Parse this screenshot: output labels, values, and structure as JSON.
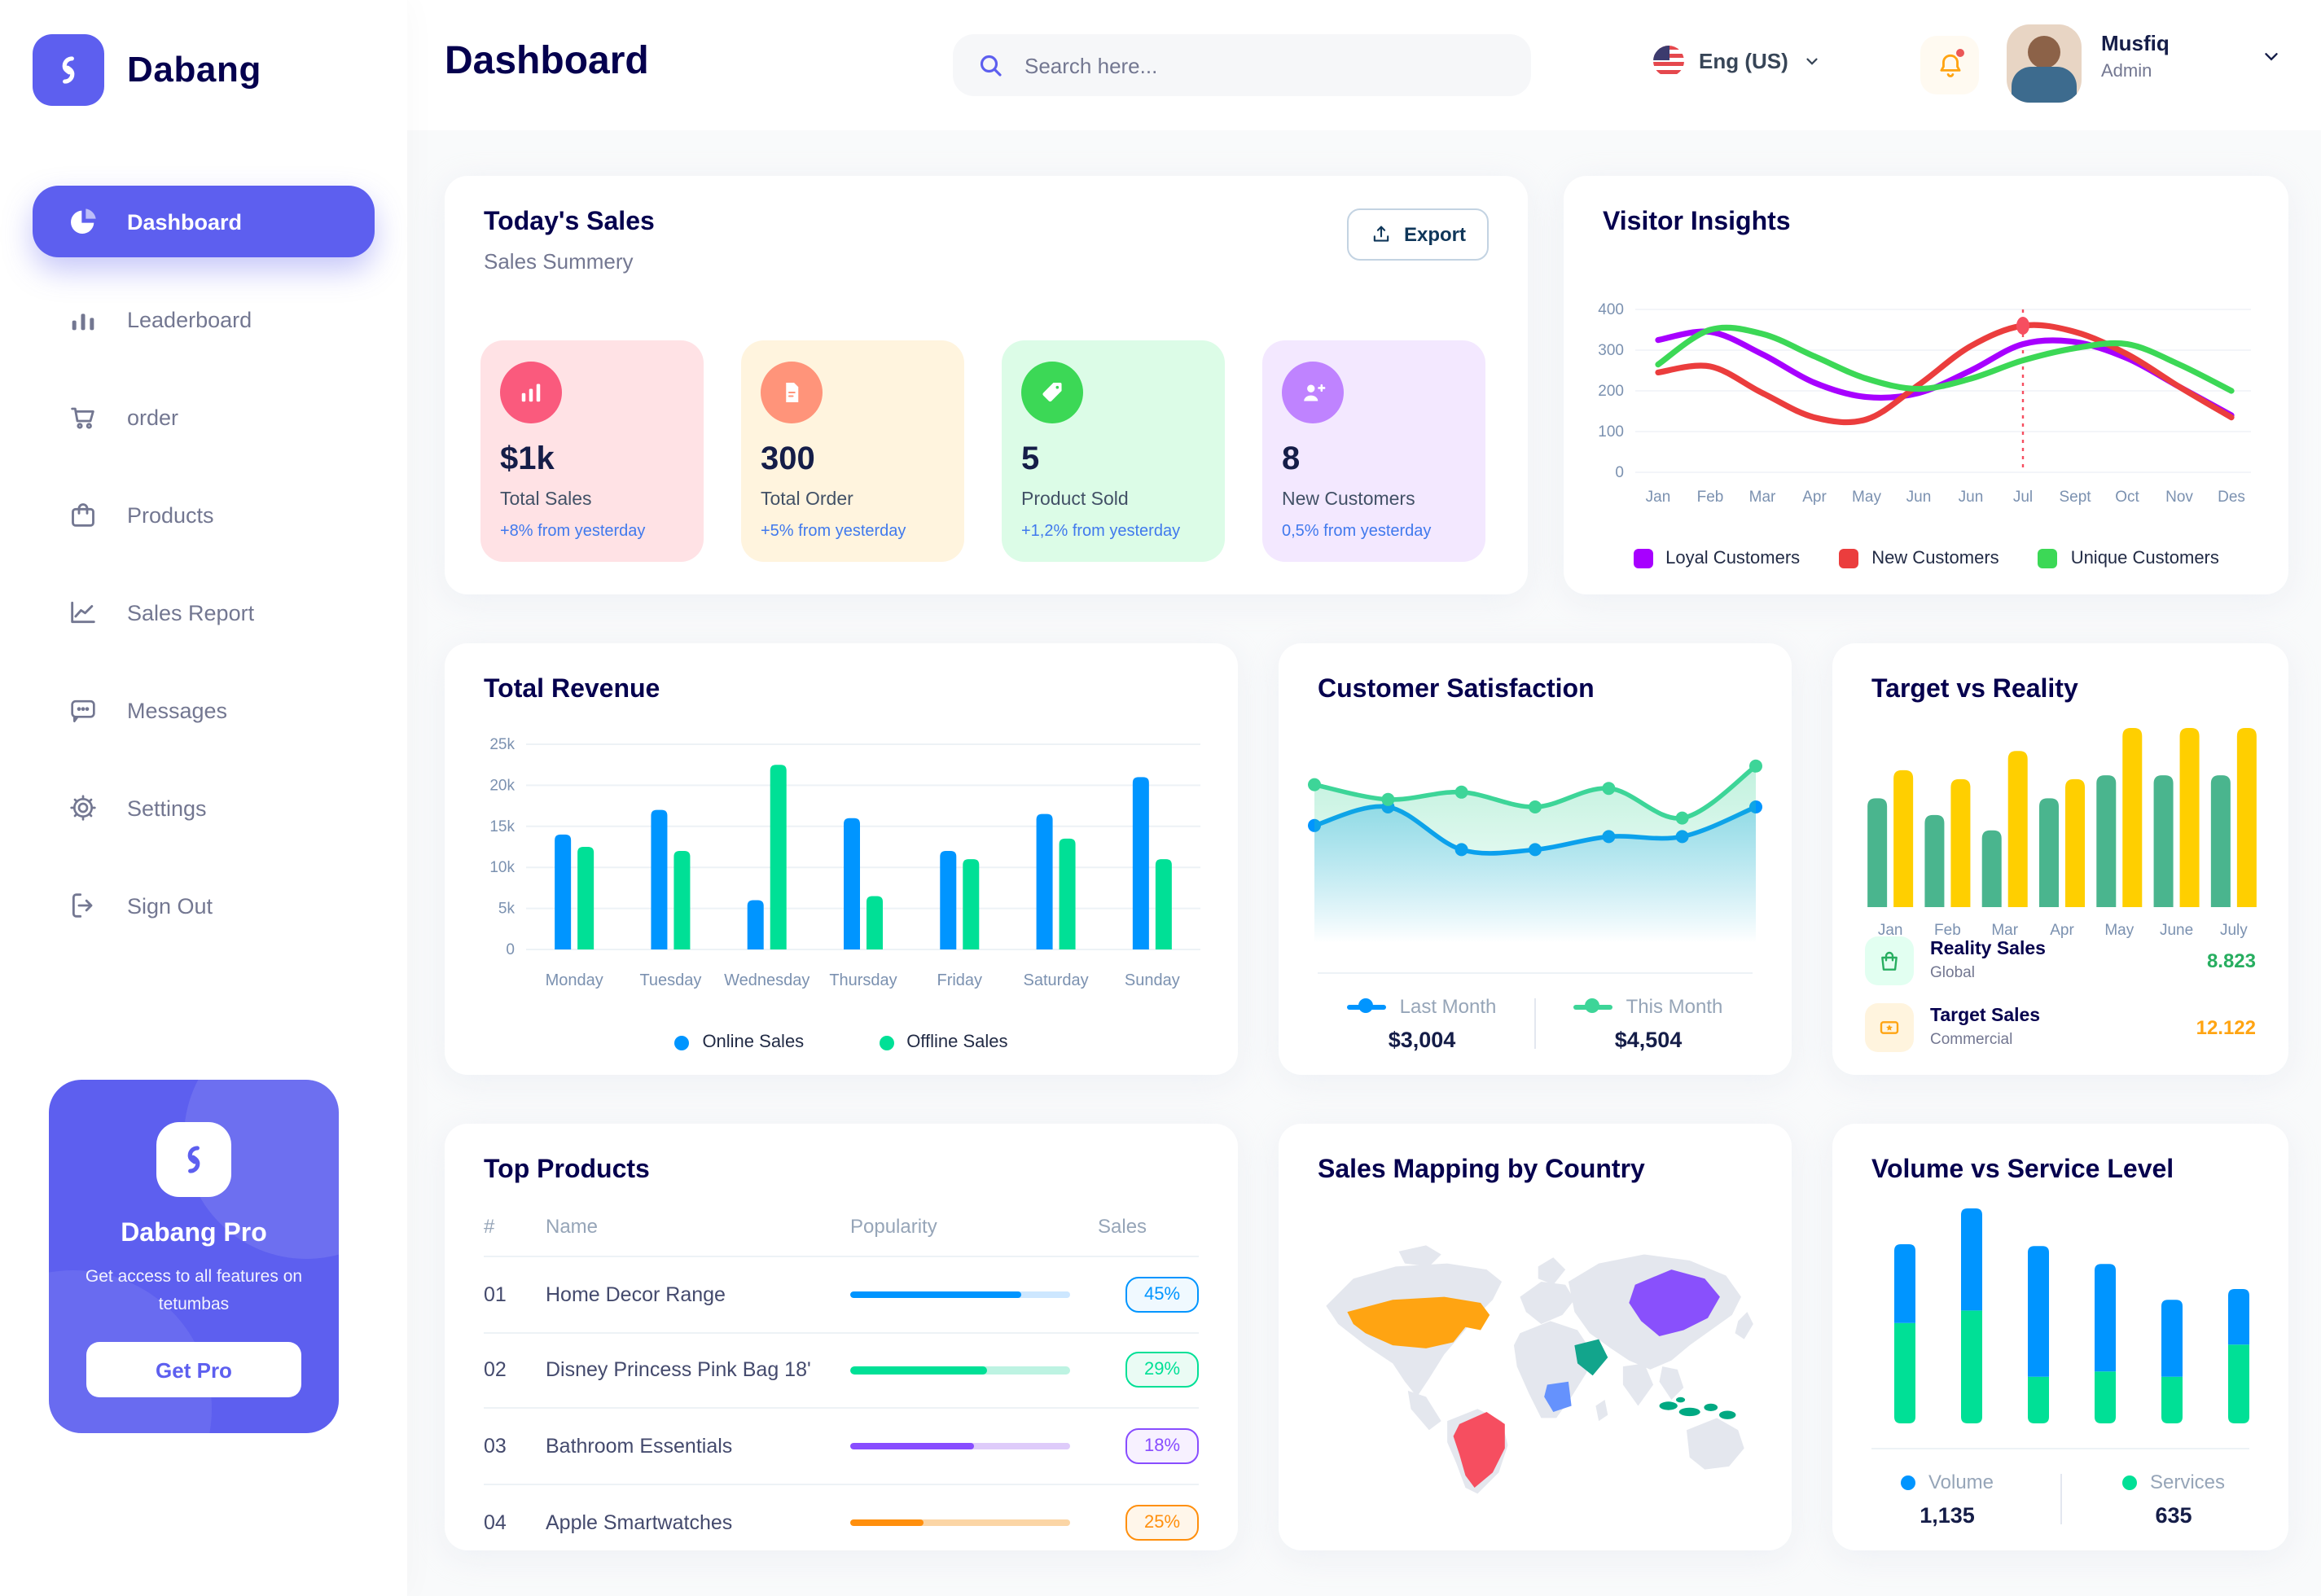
{
  "brand": {
    "name": "Dabang"
  },
  "sidebar": {
    "items": [
      {
        "label": "Dashboard",
        "icon": "pie-chart-icon",
        "active": true
      },
      {
        "label": "Leaderboard",
        "icon": "bar-chart-icon",
        "active": false
      },
      {
        "label": "order",
        "icon": "cart-icon",
        "active": false
      },
      {
        "label": "Products",
        "icon": "bag-icon",
        "active": false
      },
      {
        "label": "Sales Report",
        "icon": "line-chart-icon",
        "active": false
      },
      {
        "label": "Messages",
        "icon": "message-icon",
        "active": false
      },
      {
        "label": "Settings",
        "icon": "gear-icon",
        "active": false
      },
      {
        "label": "Sign Out",
        "icon": "sign-out-icon",
        "active": false
      }
    ],
    "pro_card": {
      "title": "Dabang Pro",
      "description": "Get access to all features on tetumbas",
      "button": "Get Pro"
    }
  },
  "header": {
    "title": "Dashboard",
    "search_placeholder": "Search here...",
    "language": "Eng (US)",
    "user_name": "Musfiq",
    "user_role": "Admin"
  },
  "today_sales": {
    "title": "Today's Sales",
    "subtitle": "Sales Summery",
    "export_label": "Export",
    "stats": [
      {
        "value": "$1k",
        "label": "Total Sales",
        "trend": "+8% from yesterday",
        "bg": "#FFE2E5",
        "icon_bg": "#FA5A7D",
        "icon": "bar-stats-icon"
      },
      {
        "value": "300",
        "label": "Total Order",
        "trend": "+5% from yesterday",
        "bg": "#FFF4DE",
        "icon_bg": "#FF947A",
        "icon": "order-file-icon"
      },
      {
        "value": "5",
        "label": "Product Sold",
        "trend": "+1,2% from yesterday",
        "bg": "#DCFCE7",
        "icon_bg": "#3CD856",
        "icon": "tag-icon"
      },
      {
        "value": "8",
        "label": "New Customers",
        "trend": "0,5% from yesterday",
        "bg": "#F3E8FF",
        "icon_bg": "#BF83FF",
        "icon": "new-customer-icon"
      }
    ]
  },
  "chart_data": {
    "visitor_insights": {
      "type": "line",
      "title": "Visitor Insights",
      "x": [
        "Jan",
        "Feb",
        "Mar",
        "Apr",
        "May",
        "Jun",
        "Jun",
        "Jul",
        "Sept",
        "Oct",
        "Nov",
        "Des"
      ],
      "ylim": [
        0,
        400
      ],
      "yticks": [
        0,
        100,
        200,
        300,
        400
      ],
      "grid": true,
      "legend_position": "bottom",
      "series": [
        {
          "name": "Loyal Customers",
          "color": "#A700FF",
          "values": [
            325,
            345,
            290,
            220,
            185,
            195,
            250,
            315,
            320,
            280,
            210,
            140
          ]
        },
        {
          "name": "New Customers",
          "color": "#EB3D3D",
          "values": [
            245,
            260,
            195,
            135,
            130,
            215,
            310,
            360,
            345,
            290,
            210,
            135
          ]
        },
        {
          "name": "Unique Customers",
          "color": "#3CD856",
          "values": [
            265,
            350,
            340,
            285,
            230,
            205,
            230,
            275,
            305,
            315,
            265,
            200
          ]
        }
      ],
      "highlight": {
        "x_index": 7,
        "x_label": "Jul",
        "series": "New Customers",
        "value": 360,
        "marker_color": "#F64E60"
      }
    },
    "total_revenue": {
      "type": "bar",
      "title": "Total Revenue",
      "categories": [
        "Monday",
        "Tuesday",
        "Wednesday",
        "Thursday",
        "Friday",
        "Saturday",
        "Sunday"
      ],
      "ylim": [
        0,
        25000
      ],
      "ytick_labels": [
        "0",
        "5k",
        "10k",
        "15k",
        "20k",
        "25k"
      ],
      "grid": true,
      "legend_position": "bottom",
      "series": [
        {
          "name": "Online Sales",
          "color": "#0095FF",
          "values": [
            14000,
            17000,
            6000,
            16000,
            12000,
            16500,
            21000
          ]
        },
        {
          "name": "Offline Sales",
          "color": "#00E096",
          "values": [
            12500,
            12000,
            22500,
            6500,
            11000,
            13500,
            11000
          ]
        }
      ]
    },
    "customer_satisfaction": {
      "type": "area",
      "title": "Customer Satisfaction",
      "scale": [
        0,
        100
      ],
      "series": [
        {
          "name": "Last Month",
          "color": "#0095FF",
          "total": "$3,004",
          "values": [
            58,
            68,
            45,
            45,
            52,
            52,
            68
          ]
        },
        {
          "name": "This Month",
          "color": "#3DD598",
          "total": "$4,504",
          "values": [
            80,
            72,
            76,
            68,
            78,
            62,
            90
          ]
        }
      ]
    },
    "target_vs_reality": {
      "type": "bar",
      "title": "Target vs Reality",
      "categories": [
        "Jan",
        "Feb",
        "Mar",
        "Apr",
        "May",
        "June",
        "July"
      ],
      "ylim": [
        0,
        14
      ],
      "series": [
        {
          "name": "Reality Sales",
          "color": "#4AB58E",
          "values": [
            8.5,
            7.2,
            6.0,
            8.5,
            10.3,
            10.3,
            10.3
          ]
        },
        {
          "name": "Target Sales",
          "color": "#FFCF00",
          "values": [
            10.7,
            10.0,
            12.2,
            10.0,
            14.0,
            14.0,
            14.0
          ]
        }
      ],
      "legend": [
        {
          "label": "Reality Sales",
          "sublabel": "Global",
          "value": "8.823",
          "value_color": "#27AE60",
          "icon_bg": "#E2FFF1",
          "icon": "shopping-bag-icon"
        },
        {
          "label": "Target Sales",
          "sublabel": "Commercial",
          "value": "12.122",
          "value_color": "#FFA412",
          "icon_bg": "#FFF4DE",
          "icon": "ticket-icon"
        }
      ]
    },
    "volume_vs_service": {
      "type": "stacked-bar",
      "title": "Volume vs Service Level",
      "series": [
        {
          "name": "Volume",
          "color": "#0095FF",
          "total": "1,135",
          "values": [
            44,
            57,
            73,
            60,
            43,
            31
          ]
        },
        {
          "name": "Services",
          "color": "#00E096",
          "total": "635",
          "values": [
            56,
            63,
            26,
            29,
            26,
            44
          ]
        }
      ]
    }
  },
  "top_products": {
    "title": "Top Products",
    "headers": [
      "#",
      "Name",
      "Popularity",
      "Sales"
    ],
    "rows": [
      {
        "num": "01",
        "name": "Home Decor Range",
        "popularity_pct": 78,
        "sales": "45%",
        "color": "#0095FF",
        "track": "#CDE7FF",
        "badge_bg": "#F0F9FF"
      },
      {
        "num": "02",
        "name": "Disney Princess Pink Bag 18'",
        "popularity_pct": 62,
        "sales": "29%",
        "color": "#00E096",
        "track": "#BDF3E2",
        "badge_bg": "#EAFBF4"
      },
      {
        "num": "03",
        "name": "Bathroom Essentials",
        "popularity_pct": 56,
        "sales": "18%",
        "color": "#884DFF",
        "track": "#DECBFA",
        "badge_bg": "#F7F1FF"
      },
      {
        "num": "04",
        "name": "Apple Smartwatches",
        "popularity_pct": 33,
        "sales": "25%",
        "color": "#FF8F0D",
        "track": "#FBD5A5",
        "badge_bg": "#FFF6EA"
      }
    ]
  },
  "sales_map": {
    "title": "Sales Mapping by Country",
    "countries": [
      {
        "name": "United States",
        "color": "#FFA412"
      },
      {
        "name": "Brazil",
        "color": "#F64E60"
      },
      {
        "name": "Saudi Arabia",
        "color": "#12A58C"
      },
      {
        "name": "DR Congo",
        "color": "#6592FD"
      },
      {
        "name": "China",
        "color": "#8950FC"
      },
      {
        "name": "Indonesia",
        "color": "#00A982"
      }
    ]
  }
}
